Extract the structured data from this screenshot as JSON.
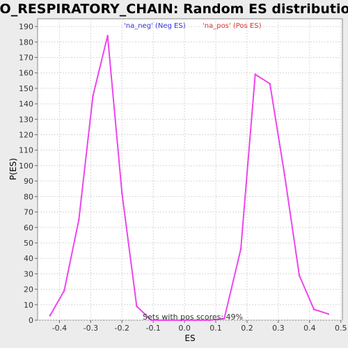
{
  "chart_data": {
    "type": "line",
    "title": "GO_RESPIRATORY_CHAIN: Random ES distribution",
    "xlabel": "ES",
    "ylabel": "P(ES)",
    "xlim": [
      -0.47,
      0.505
    ],
    "ylim": [
      0,
      195
    ],
    "x_ticks": [
      -0.4,
      -0.3,
      -0.2,
      -0.1,
      0.0,
      0.1,
      0.2,
      0.3,
      0.4,
      0.5
    ],
    "x_tick_labels": [
      "-0.4",
      "-0.3",
      "-0.2",
      "-0.1",
      "0.0",
      "0.1",
      "0.2",
      "0.3",
      "0.4",
      "0.5"
    ],
    "y_ticks": [
      0,
      10,
      20,
      30,
      40,
      50,
      60,
      70,
      80,
      90,
      100,
      110,
      120,
      130,
      140,
      150,
      160,
      170,
      180,
      190
    ],
    "y_tick_labels": [
      "0",
      "10",
      "20",
      "30",
      "40",
      "50",
      "60",
      "70",
      "80",
      "90",
      "100",
      "110",
      "120",
      "130",
      "140",
      "150",
      "160",
      "170",
      "180",
      "190"
    ],
    "grid": true,
    "legend": [
      "'na_neg' (Neg ES)",
      "'na_pos' (Pos ES)"
    ],
    "legend_colors": [
      "#3333dd",
      "#dd3333"
    ],
    "line_color": "#ee44ee",
    "annotation": "Sets with pos scores: 49%",
    "series": [
      {
        "x": [
          -0.43,
          -0.385,
          -0.338,
          -0.293,
          -0.246,
          -0.2,
          -0.153,
          -0.107,
          -0.06,
          -0.013,
          0.034,
          0.08,
          0.127,
          0.18,
          0.226,
          0.273,
          0.32,
          0.367,
          0.414,
          0.46
        ],
        "values": [
          3,
          19,
          65,
          145,
          184,
          82,
          9,
          0,
          0,
          0,
          0,
          0,
          1,
          46,
          159,
          153,
          94,
          29,
          7,
          4
        ]
      }
    ]
  }
}
